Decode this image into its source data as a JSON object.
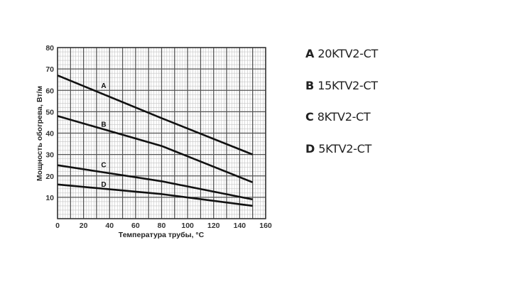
{
  "chart_data": {
    "type": "line",
    "title": "",
    "xlabel": "Температура трубы, °C",
    "ylabel": "Мощность обогрева, Вт/м",
    "xlim": [
      0,
      160
    ],
    "ylim": [
      0,
      80
    ],
    "x_ticks": [
      0,
      20,
      40,
      60,
      80,
      100,
      120,
      140,
      160
    ],
    "y_ticks": [
      10,
      20,
      30,
      40,
      50,
      60,
      70,
      80
    ],
    "grid": true,
    "x": [
      0,
      150
    ],
    "series": [
      {
        "name": "A",
        "label": "20KTV2-CT",
        "points": [
          [
            0,
            67
          ],
          [
            80,
            47
          ],
          [
            150,
            30
          ]
        ]
      },
      {
        "name": "B",
        "label": "15KTV2-CT",
        "points": [
          [
            0,
            48
          ],
          [
            80,
            34
          ],
          [
            150,
            17
          ]
        ]
      },
      {
        "name": "C",
        "label": "8KTV2-CT",
        "points": [
          [
            0,
            25
          ],
          [
            80,
            17.5
          ],
          [
            150,
            9
          ]
        ]
      },
      {
        "name": "D",
        "label": "5KTV2-CT",
        "points": [
          [
            0,
            16
          ],
          [
            80,
            11.5
          ],
          [
            150,
            6
          ]
        ]
      }
    ],
    "annotations": [
      {
        "text": "A",
        "x": 33,
        "y": 61
      },
      {
        "text": "B",
        "x": 33,
        "y": 43
      },
      {
        "text": "C",
        "x": 33,
        "y": 24
      },
      {
        "text": "D",
        "x": 33,
        "y": 15
      }
    ],
    "legend_position": "right"
  },
  "legend": {
    "items": [
      {
        "key": "A",
        "name": "20KTV2-CT"
      },
      {
        "key": "B",
        "name": "15KTV2-CT"
      },
      {
        "key": "C",
        "name": "8KTV2-CT"
      },
      {
        "key": "D",
        "name": "5KTV2-CT"
      }
    ]
  }
}
